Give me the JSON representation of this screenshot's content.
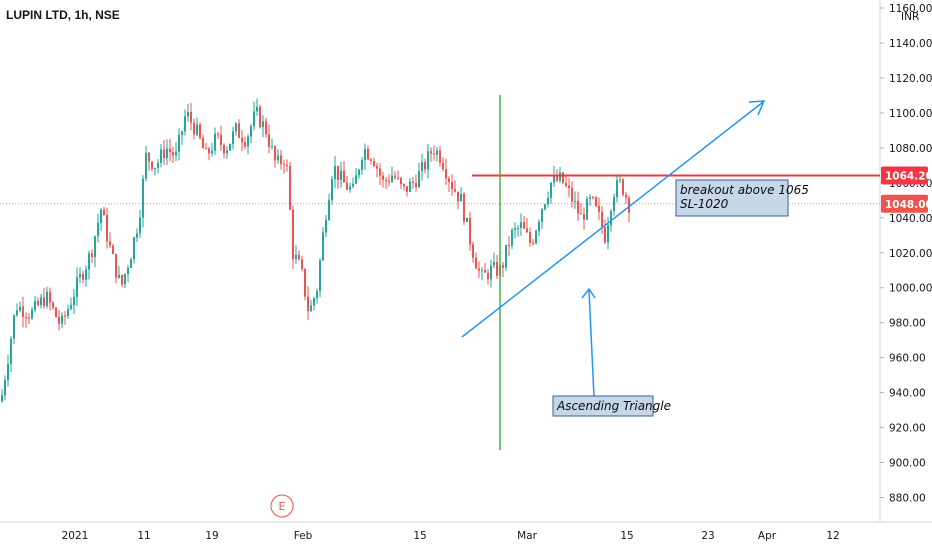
{
  "header": {
    "symbol_title": "LUPIN LTD, 1h, NSE",
    "currency": "INR"
  },
  "colors": {
    "up": "#26a69a",
    "down": "#ef5350",
    "resistance": "#f23645",
    "trendline": "#2196f3",
    "vertical_line": "#4caf50",
    "annotation_bg": "#c7d7ea",
    "annotation_border": "#3c5f90"
  },
  "chart_data": {
    "type": "candlestick",
    "ylim": [
      870,
      1160
    ],
    "y_ticks": [
      "880.00",
      "900.00",
      "920.00",
      "940.00",
      "960.00",
      "980.00",
      "1000.00",
      "1020.00",
      "1040.00",
      "1060.00",
      "1080.00",
      "1100.00",
      "1120.00",
      "1140.00",
      "1160.00"
    ],
    "x_tick_labels": [
      "2021",
      "11",
      "19",
      "Feb",
      "15",
      "Mar",
      "15",
      "23",
      "Apr",
      "12"
    ],
    "last_price_label": "1048.00",
    "last_price": 1048,
    "resistance_label": "1064.20",
    "resistance_level": 1064.2,
    "close_path": [
      [
        0,
        935
      ],
      [
        15,
        990
      ],
      [
        30,
        985
      ],
      [
        45,
        995
      ],
      [
        60,
        978
      ],
      [
        75,
        1000
      ],
      [
        90,
        1020
      ],
      [
        100,
        1045
      ],
      [
        110,
        1020
      ],
      [
        120,
        1000
      ],
      [
        130,
        1020
      ],
      [
        138,
        1040
      ],
      [
        145,
        1075
      ],
      [
        155,
        1070
      ],
      [
        165,
        1080
      ],
      [
        175,
        1075
      ],
      [
        185,
        1100
      ],
      [
        195,
        1090
      ],
      [
        205,
        1075
      ],
      [
        215,
        1085
      ],
      [
        225,
        1080
      ],
      [
        235,
        1090
      ],
      [
        245,
        1085
      ],
      [
        255,
        1100
      ],
      [
        265,
        1090
      ],
      [
        275,
        1070
      ],
      [
        285,
        1075
      ],
      [
        292,
        1020
      ],
      [
        300,
        1010
      ],
      [
        308,
        985
      ],
      [
        316,
        1000
      ],
      [
        324,
        1040
      ],
      [
        332,
        1070
      ],
      [
        342,
        1060
      ],
      [
        352,
        1055
      ],
      [
        362,
        1080
      ],
      [
        372,
        1075
      ],
      [
        382,
        1060
      ],
      [
        392,
        1065
      ],
      [
        402,
        1055
      ],
      [
        412,
        1060
      ],
      [
        422,
        1068
      ],
      [
        432,
        1080
      ],
      [
        440,
        1075
      ],
      [
        450,
        1060
      ],
      [
        460,
        1050
      ],
      [
        470,
        1025
      ],
      [
        480,
        1005
      ],
      [
        490,
        1010
      ],
      [
        500,
        1010
      ],
      [
        510,
        1030
      ],
      [
        520,
        1035
      ],
      [
        530,
        1025
      ],
      [
        540,
        1045
      ],
      [
        550,
        1060
      ],
      [
        560,
        1062
      ],
      [
        570,
        1052
      ],
      [
        580,
        1040
      ],
      [
        590,
        1050
      ],
      [
        598,
        1040
      ],
      [
        604,
        1030
      ],
      [
        612,
        1055
      ],
      [
        620,
        1060
      ],
      [
        628,
        1048
      ]
    ],
    "verticals": [
      {
        "position": "late Feb"
      }
    ],
    "annotations": [
      {
        "lines": [
          "breakout above 1065",
          "SL-1020"
        ]
      },
      {
        "lines": [
          "Ascending Triangle"
        ]
      }
    ],
    "marker": "E"
  }
}
